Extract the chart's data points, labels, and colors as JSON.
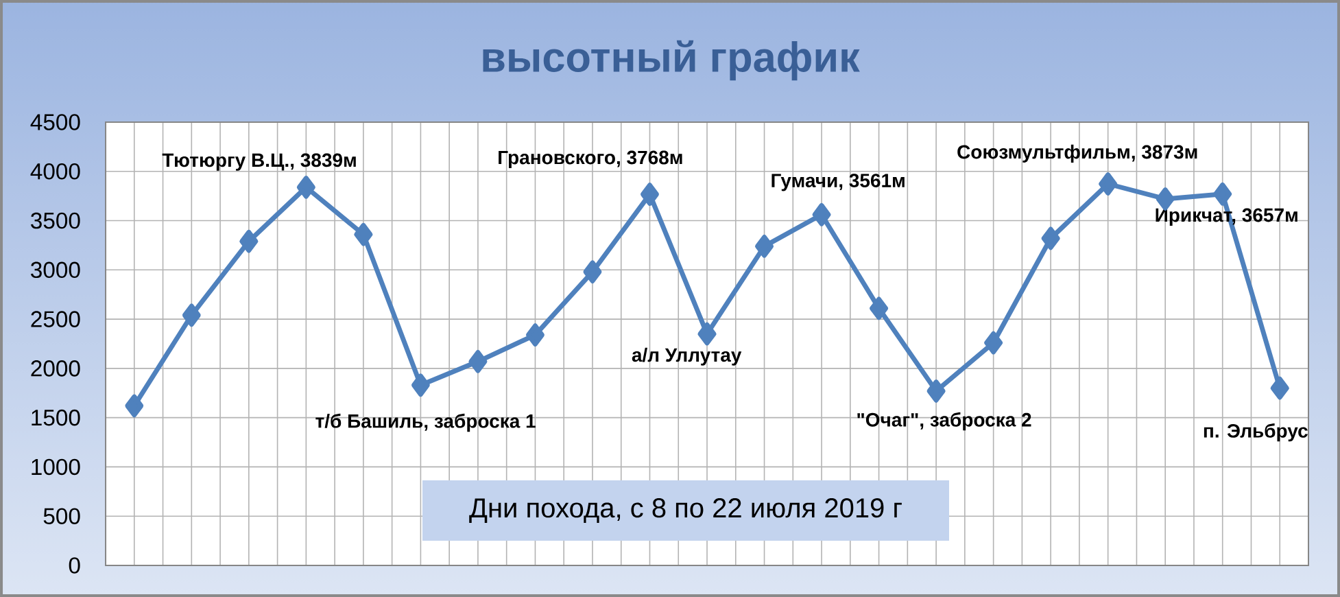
{
  "chart_data": {
    "type": "line",
    "title": "высотный график",
    "xlabel": "Дни похода, с 8 по 22 июля 2019 г",
    "categories": [
      null,
      null,
      null,
      null,
      null,
      null,
      null,
      null,
      null,
      null,
      null,
      null,
      null,
      null,
      null,
      null,
      null,
      null,
      null,
      null,
      null
    ],
    "series": [
      {
        "color": "#4f81bd",
        "values": [
          1620,
          2540,
          3290,
          3839,
          3360,
          1830,
          2070,
          2340,
          2980,
          3768,
          2350,
          3240,
          3561,
          2610,
          1770,
          2260,
          3320,
          3873,
          3720,
          3770,
          1800
        ]
      }
    ],
    "ylim": [
      0,
      4500
    ],
    "yticks": [
      0,
      500,
      1000,
      1500,
      2000,
      2500,
      3000,
      3500,
      4000,
      4500
    ],
    "grid": true,
    "marker": "diamond",
    "line_style": "solid",
    "annotations": [
      "Тютюргу В.Ц., 3839м",
      "т/б Башиль, заброска 1",
      "Грановского, 3768м",
      "а/л Уллутау",
      "Гумачи, 3561м",
      "\"Очаг\", заброска 2",
      "Союзмультфильм, 3873м",
      "Ирикчат, 3657м",
      "п. Эльбрус"
    ]
  }
}
